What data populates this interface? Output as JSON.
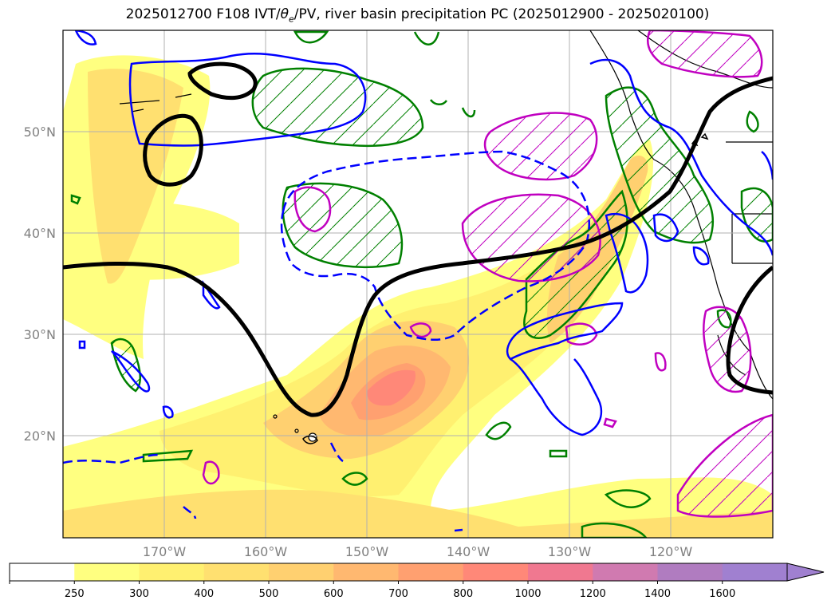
{
  "title": {
    "prefix": "2025012700 F108 IVT/",
    "theta": "θ",
    "theta_sub": "e",
    "suffix": "/PV, river basin precipitation PC (2025012900 - 2025020100)"
  },
  "map": {
    "lat_labels": [
      "50°N",
      "40°N",
      "30°N",
      "20°N"
    ],
    "lon_labels": [
      "170°W",
      "160°W",
      "150°W",
      "140°W",
      "130°W",
      "120°W"
    ],
    "colors": {
      "pv_contour": "#000000",
      "theta_e_solid": "#0000ff",
      "theta_e_dashed": "#0000ff",
      "precip_green": "#008000",
      "precip_magenta": "#c000c0",
      "coast": "#000000",
      "grid": "#b0b0b0"
    }
  },
  "colorbar": {
    "ticks": [
      "250",
      "300",
      "400",
      "500",
      "600",
      "700",
      "800",
      "1000",
      "1200",
      "1400",
      "1600"
    ],
    "colors": [
      "#ffffff",
      "#ffff80",
      "#fff070",
      "#ffe070",
      "#ffd070",
      "#ffb870",
      "#ffa070",
      "#ff8878",
      "#f07890",
      "#d07ab0",
      "#b07cc0",
      "#a080d0"
    ],
    "extend": "max"
  }
}
